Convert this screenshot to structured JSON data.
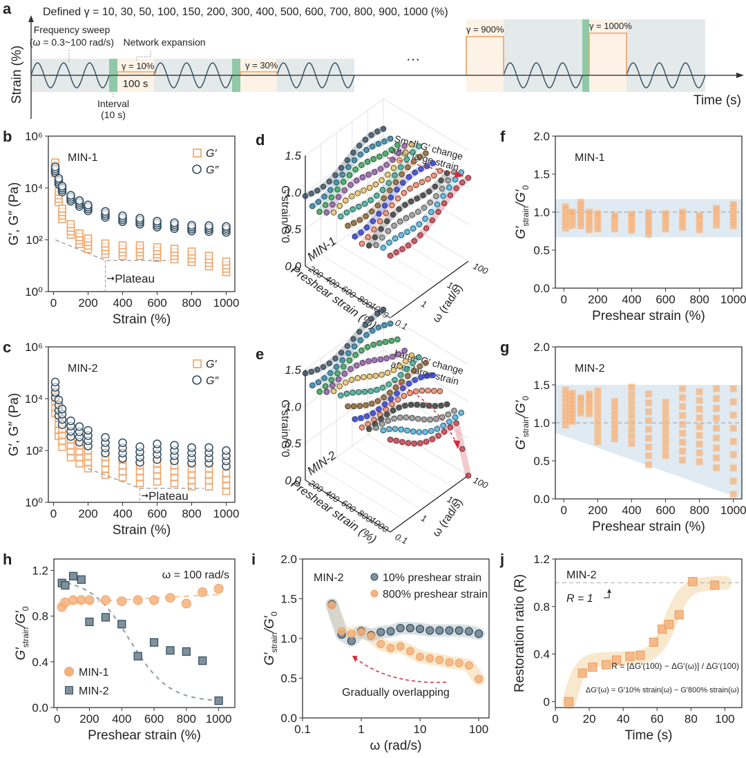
{
  "colors": {
    "orange": "#f0a060",
    "orange_fill": "#f5b27c",
    "navy": "#2e4a5e",
    "navy_fill": "#6b8594",
    "band_blue": "#dfeaf2",
    "grey_band": "#e4e9ea",
    "cream_band": "#fcf3e6",
    "green_band": "#8fc9a8",
    "red_arrow": "#d8283a",
    "dashed_grey": "#999999"
  },
  "panel_a": {
    "letter": "a",
    "title": "Defined γ = 10, 30, 50, 100, 150, 200, 300, 400, 500, 600, 700, 800, 900, 1000 (%)",
    "ylabel": "Strain (%)",
    "xlabel": "Time (s)",
    "freq_sweep_label1": "Frequency sweep",
    "freq_sweep_label2": "(ω = 0.3~100 rad/s)",
    "network_label": "Network expansion",
    "interval_label1": "Interval",
    "interval_label2": "(10 s)",
    "step_duration": "100 s",
    "ellipsis": "···",
    "steps": [
      "γ = 10%",
      "γ = 30%",
      "γ = 900%",
      "γ = 1000%"
    ]
  },
  "chart_data": [
    {
      "panel": "b",
      "type": "scatter",
      "title": "MIN-1",
      "xlabel": "Strain (%)",
      "ylabel": "G′, G″ (Pa)",
      "yscale": "log",
      "xlim": [
        -30,
        1050
      ],
      "ylim": [
        1,
        1000000
      ],
      "xticks": [
        "0",
        "200",
        "400",
        "600",
        "800",
        "1000"
      ],
      "yticks": [
        "10⁰",
        "10²",
        "10⁴",
        "10⁶"
      ],
      "legend": [
        "G′",
        "G″"
      ],
      "legend_position": "top-right",
      "annotation": "Plateau",
      "x": [
        10,
        30,
        50,
        100,
        150,
        200,
        300,
        400,
        500,
        600,
        700,
        800,
        900,
        1000
      ],
      "series": [
        {
          "name": "G′",
          "values": [
            60000,
            4500,
            1000,
            250,
            110,
            70,
            45,
            38,
            38,
            32,
            28,
            22,
            15,
            9
          ]
        },
        {
          "name": "G″",
          "values": [
            50000,
            18000,
            9000,
            4000,
            2500,
            1700,
            950,
            650,
            520,
            400,
            350,
            280,
            270,
            250
          ]
        }
      ]
    },
    {
      "panel": "c",
      "type": "scatter",
      "title": "MIN-2",
      "xlabel": "Strain (%)",
      "ylabel": "G′, G″ (Pa)",
      "yscale": "log",
      "xlim": [
        -30,
        1050
      ],
      "ylim": [
        1,
        1000000
      ],
      "xticks": [
        "0",
        "200",
        "400",
        "600",
        "800",
        "1000"
      ],
      "yticks": [
        "10⁰",
        "10²",
        "10⁴",
        "10⁶"
      ],
      "legend": [
        "G′",
        "G″"
      ],
      "legend_position": "top-right",
      "annotation": "Plateau",
      "x": [
        10,
        30,
        50,
        100,
        150,
        200,
        300,
        400,
        500,
        600,
        700,
        800,
        900,
        1000
      ],
      "series": [
        {
          "name": "G′",
          "values": [
            6000,
            800,
            300,
            120,
            70,
            45,
            25,
            20,
            12,
            14,
            12,
            9,
            9,
            6
          ]
        },
        {
          "name": "G″",
          "values": [
            22000,
            4500,
            2000,
            700,
            420,
            300,
            160,
            100,
            70,
            90,
            80,
            65,
            65,
            50
          ]
        }
      ]
    },
    {
      "panel": "d",
      "type": "scatter3d",
      "title": "MIN-1",
      "zlabel": "G′strain/G′0",
      "xlabel": "Preshear strain (%)",
      "ylabel": "ω (rad/s)",
      "zticks": [
        "0.0",
        "0.5",
        "1.0",
        "1.5"
      ],
      "xticks": [
        "200",
        "400",
        "600",
        "800",
        "1000"
      ],
      "yticks": [
        "0.1",
        "1",
        "10",
        "100"
      ],
      "annotation": "Small G′ change after large strain"
    },
    {
      "panel": "e",
      "type": "scatter3d",
      "title": "MIN-2",
      "zlabel": "G′strain/G′0",
      "xlabel": "Preshear strain (%)",
      "ylabel": "ω (rad/s)",
      "zticks": [
        "0.0",
        "0.5",
        "1.0",
        "1.5"
      ],
      "xticks": [
        "200",
        "400",
        "600",
        "800",
        "1000"
      ],
      "yticks": [
        "0.1",
        "1",
        "10",
        "100"
      ],
      "annotation": "Large G′ change after large strain"
    },
    {
      "panel": "f",
      "type": "scatter",
      "title": "MIN-1",
      "xlabel": "Preshear strain (%)",
      "ylabel": "G′strain/G′0",
      "xlim": [
        -50,
        1050
      ],
      "ylim": [
        0,
        2.0
      ],
      "xticks": [
        "0",
        "200",
        "400",
        "600",
        "800",
        "1000"
      ],
      "yticks": [
        "0.0",
        "0.5",
        "1.0",
        "1.5",
        "2.0"
      ],
      "band": [
        0.67,
        1.17
      ],
      "ranges": [
        {
          "x": 10,
          "min": 0.79,
          "max": 1.07
        },
        {
          "x": 30,
          "min": 0.82,
          "max": 1.0
        },
        {
          "x": 50,
          "min": 0.83,
          "max": 1.0
        },
        {
          "x": 100,
          "min": 0.82,
          "max": 1.13
        },
        {
          "x": 150,
          "min": 0.77,
          "max": 1.0
        },
        {
          "x": 200,
          "min": 0.78,
          "max": 0.98
        },
        {
          "x": 300,
          "min": 0.78,
          "max": 0.95
        },
        {
          "x": 400,
          "min": 0.76,
          "max": 0.97
        },
        {
          "x": 500,
          "min": 0.71,
          "max": 0.99
        },
        {
          "x": 600,
          "min": 0.78,
          "max": 0.98
        },
        {
          "x": 700,
          "min": 0.8,
          "max": 1.0
        },
        {
          "x": 800,
          "min": 0.77,
          "max": 0.95
        },
        {
          "x": 900,
          "min": 0.83,
          "max": 1.05
        },
        {
          "x": 1000,
          "min": 0.82,
          "max": 1.1
        }
      ]
    },
    {
      "panel": "g",
      "type": "scatter",
      "title": "MIN-2",
      "xlabel": "Preshear strain (%)",
      "ylabel": "G′strain/G′0",
      "xlim": [
        -50,
        1050
      ],
      "ylim": [
        0,
        2.0
      ],
      "xticks": [
        "0",
        "200",
        "400",
        "600",
        "800",
        "1000"
      ],
      "yticks": [
        "0.0",
        "0.5",
        "1.0",
        "1.5",
        "2.0"
      ],
      "band_top": 1.5,
      "band_bottom_start": 0.87,
      "band_bottom_end": 0.0,
      "ranges": [
        {
          "x": 10,
          "min": 0.97,
          "max": 1.43
        },
        {
          "x": 30,
          "min": 1.03,
          "max": 1.37
        },
        {
          "x": 50,
          "min": 1.02,
          "max": 1.39
        },
        {
          "x": 100,
          "min": 1.13,
          "max": 1.33
        },
        {
          "x": 150,
          "min": 1.12,
          "max": 1.38
        },
        {
          "x": 200,
          "min": 0.75,
          "max": 1.42
        },
        {
          "x": 300,
          "min": 0.79,
          "max": 1.28
        },
        {
          "x": 400,
          "min": 0.73,
          "max": 1.47
        },
        {
          "x": 500,
          "min": 0.45,
          "max": 1.38
        },
        {
          "x": 600,
          "min": 0.57,
          "max": 1.27
        },
        {
          "x": 700,
          "min": 0.51,
          "max": 1.45
        },
        {
          "x": 800,
          "min": 0.49,
          "max": 1.41
        },
        {
          "x": 900,
          "min": 0.41,
          "max": 1.45
        },
        {
          "x": 1000,
          "min": 0.06,
          "max": 1.45
        }
      ]
    },
    {
      "panel": "h",
      "type": "scatter",
      "title": "",
      "annotation": "ω = 100 rad/s",
      "xlabel": "Preshear strain (%)",
      "ylabel": "G′strain/G′0",
      "xlim": [
        -20,
        1100
      ],
      "ylim": [
        0,
        1.3
      ],
      "xticks": [
        "0",
        "200",
        "400",
        "600",
        "800",
        "1000"
      ],
      "yticks": [
        "0.0",
        "0.4",
        "0.8",
        "1.2"
      ],
      "legend_position": "bottom-left",
      "series": [
        {
          "name": "MIN-1",
          "x": [
            30,
            50,
            100,
            150,
            200,
            300,
            400,
            500,
            600,
            700,
            800,
            900,
            1000
          ],
          "values": [
            0.88,
            0.92,
            0.94,
            0.94,
            0.94,
            0.94,
            0.93,
            0.94,
            0.94,
            0.96,
            0.91,
            1.01,
            1.04
          ]
        },
        {
          "name": "MIN-2",
          "x": [
            30,
            50,
            100,
            150,
            200,
            300,
            400,
            500,
            600,
            700,
            800,
            900,
            1000
          ],
          "values": [
            1.09,
            1.07,
            1.15,
            1.12,
            0.75,
            0.79,
            0.73,
            0.45,
            0.57,
            0.5,
            0.49,
            0.41,
            0.06
          ]
        }
      ]
    },
    {
      "panel": "i",
      "type": "scatter",
      "title": "MIN-2",
      "xlabel": "ω (rad/s)",
      "ylabel": "G′strain/G′0",
      "xscale": "log",
      "xlim": [
        0.1,
        150
      ],
      "ylim": [
        0,
        2.0
      ],
      "xticks": [
        "0.1",
        "1",
        "10",
        "100"
      ],
      "yticks": [
        "0.0",
        "0.5",
        "1.0",
        "1.5",
        "2.0"
      ],
      "annotation": "Gradually overlapping",
      "legend_position": "top-right",
      "x": [
        0.316,
        0.464,
        0.681,
        1.0,
        1.47,
        2.15,
        3.16,
        4.64,
        6.81,
        10,
        14.7,
        21.5,
        31.6,
        46.4,
        68.1,
        100
      ],
      "series": [
        {
          "name": "10% preshear strain",
          "values": [
            1.43,
            1.05,
            0.97,
            1.09,
            1.04,
            1.08,
            1.09,
            1.13,
            1.13,
            1.12,
            1.1,
            1.1,
            1.1,
            1.1,
            1.09,
            1.06
          ]
        },
        {
          "name": "800% preshear strain",
          "values": [
            1.42,
            1.09,
            1.06,
            1.08,
            1.03,
            0.93,
            0.88,
            0.9,
            0.84,
            0.77,
            0.75,
            0.73,
            0.7,
            0.69,
            0.66,
            0.49
          ]
        }
      ]
    },
    {
      "panel": "j",
      "type": "scatter",
      "title": "MIN-2",
      "xlabel": "Time (s)",
      "ylabel": "Restoration ratio (R)",
      "xlim": [
        0,
        110
      ],
      "ylim": [
        -0.05,
        1.2
      ],
      "xticks": [
        "0",
        "20",
        "40",
        "60",
        "80",
        "100"
      ],
      "yticks": [
        "0",
        "0.4",
        "0.8",
        "1.2"
      ],
      "reference_label": "R = 1",
      "formula_1": "R = [ΔG′(100) − ΔG′(ω)] / ΔG′(100)",
      "formula_2": "ΔG′(ω) = G′10% strain(ω) − G′800% strain(ω)",
      "x": [
        8,
        16,
        22,
        30,
        36,
        44,
        50,
        58,
        63,
        67,
        73,
        81,
        94
      ],
      "values": [
        0.0,
        0.24,
        0.29,
        0.31,
        0.35,
        0.38,
        0.39,
        0.5,
        0.61,
        0.65,
        0.73,
        1.01,
        0.98
      ]
    }
  ],
  "labels": {
    "b_letter": "b",
    "c_letter": "c",
    "d_letter": "d",
    "e_letter": "e",
    "f_letter": "f",
    "g_letter": "g",
    "h_letter": "h",
    "i_letter": "i",
    "j_letter": "j",
    "plateau": "Plateau",
    "gp": "G′",
    "gpp": "G″",
    "min1": "MIN-1",
    "min2": "MIN-2",
    "ratio_label": "G′strain/G′0",
    "omega100": "ω = 100 rad/s",
    "legend_10": "10% preshear strain",
    "legend_800": "800% preshear strain",
    "overlap": "Gradually overlapping",
    "r1": "R = 1",
    "d_note_1": "Small G′ change",
    "d_note_2": "after large strain",
    "e_note_1": "Large G′ change",
    "e_note_2": "after large strain"
  }
}
